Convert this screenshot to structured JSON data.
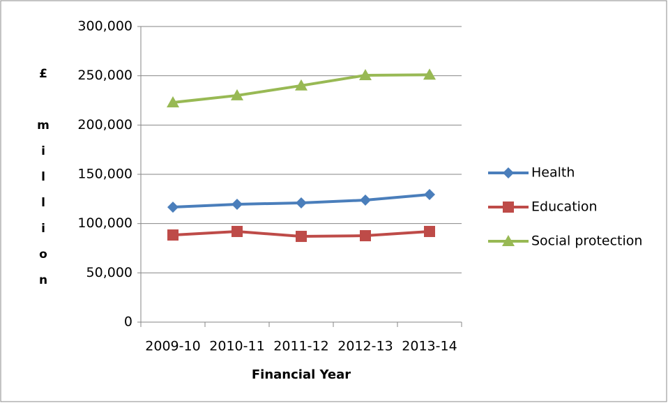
{
  "chart_data": {
    "type": "line",
    "x_label": "Financial Year",
    "y_label": "£ million",
    "categories": [
      "2009-10",
      "2010-11",
      "2011-12",
      "2012-13",
      "2013-14"
    ],
    "series": [
      {
        "name": "Health",
        "color": "#4a7ebb",
        "marker": "diamond",
        "values": [
          116700,
          119600,
          121000,
          123800,
          129500
        ]
      },
      {
        "name": "Education",
        "color": "#be4b48",
        "marker": "square",
        "values": [
          88400,
          92000,
          87000,
          87700,
          92000
        ]
      },
      {
        "name": "Social protection",
        "color": "#98b954",
        "marker": "triangle",
        "values": [
          222900,
          230000,
          240000,
          250500,
          251000
        ]
      }
    ],
    "ylim": [
      0,
      300000
    ],
    "yticks": [
      0,
      {
        "value": 50000,
        "label": "50,000"
      },
      {
        "value": 100000,
        "label": "100,000"
      },
      {
        "value": 150000,
        "label": "150,000"
      },
      {
        "value": 200000,
        "label": "200,000"
      },
      {
        "value": 250000,
        "label": "250,000"
      },
      {
        "value": 300000,
        "label": "300,000"
      }
    ],
    "grid": true,
    "legend": "right"
  }
}
